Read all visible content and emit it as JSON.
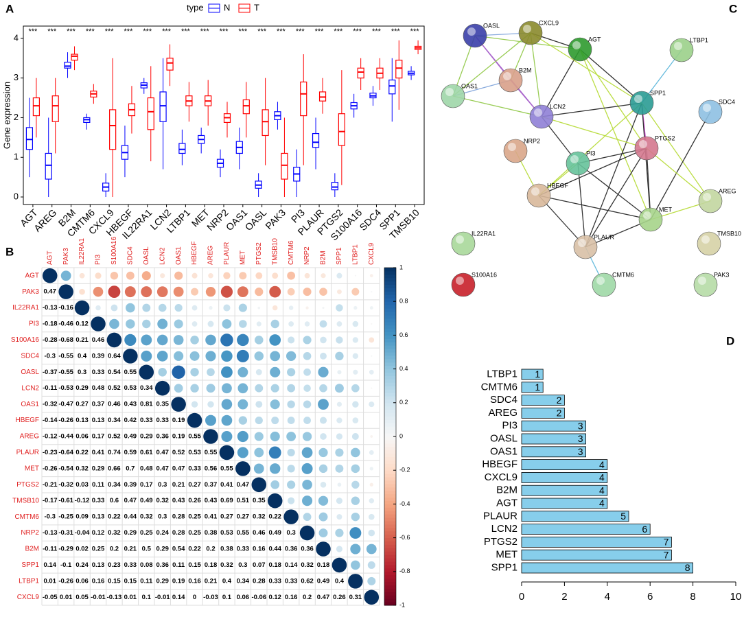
{
  "panel_labels": [
    "A",
    "B",
    "C",
    "D"
  ],
  "chart_data": [
    {
      "type": "box",
      "ylabel": "Gene expression",
      "legend_title": "type",
      "categories": [
        "AGT",
        "AREG",
        "B2M",
        "CMTM6",
        "CXCL9",
        "HBEGF",
        "IL22RA1",
        "LCN2",
        "LTBP1",
        "MET",
        "NRP2",
        "OAS1",
        "OASL",
        "PAK3",
        "PI3",
        "PLAUR",
        "PTGS2",
        "S100A16",
        "SDC4",
        "SPP1",
        "TMSB10"
      ],
      "significance": [
        "***",
        "***",
        "***",
        "***",
        "***",
        "***",
        "***",
        "***",
        "***",
        "***",
        "***",
        "***",
        "***",
        "***",
        "***",
        "***",
        "***",
        "***",
        "***",
        "***",
        "***"
      ],
      "ylim": [
        -0.19,
        4.31
      ],
      "yticks": [
        0,
        1,
        2,
        3,
        4
      ],
      "series": [
        {
          "name": "N",
          "color": "#0000ff",
          "boxes": [
            [
              0.5,
              1.2,
              1.45,
              1.75,
              2.5
            ],
            [
              0,
              0.45,
              0.8,
              1.1,
              2.0
            ],
            [
              3.0,
              3.25,
              3.3,
              3.4,
              3.65
            ],
            [
              1.7,
              1.88,
              1.95,
              2.0,
              2.1
            ],
            [
              0,
              0.15,
              0.25,
              0.35,
              0.6
            ],
            [
              0.5,
              0.95,
              1.12,
              1.3,
              1.8
            ],
            [
              2.6,
              2.75,
              2.82,
              2.88,
              3.0
            ],
            [
              0.7,
              1.9,
              2.3,
              2.65,
              3.5
            ],
            [
              0.8,
              1.1,
              1.2,
              1.35,
              1.7
            ],
            [
              1.1,
              1.35,
              1.45,
              1.55,
              1.75
            ],
            [
              0.5,
              0.75,
              0.85,
              0.95,
              1.2
            ],
            [
              0.7,
              1.1,
              1.25,
              1.4,
              1.75
            ],
            [
              0,
              0.22,
              0.3,
              0.4,
              0.6
            ],
            [
              1.7,
              1.95,
              2.05,
              2.15,
              2.4
            ],
            [
              0,
              0.4,
              0.58,
              0.75,
              1.2
            ],
            [
              0.7,
              1.25,
              1.38,
              1.6,
              2.0
            ],
            [
              0,
              0.18,
              0.25,
              0.37,
              0.6
            ],
            [
              2.0,
              2.22,
              2.3,
              2.38,
              2.6
            ],
            [
              2.3,
              2.5,
              2.55,
              2.62,
              2.8
            ],
            [
              1.9,
              2.6,
              2.8,
              2.95,
              3.5
            ],
            [
              2.95,
              3.08,
              3.12,
              3.17,
              3.3
            ]
          ]
        },
        {
          "name": "T",
          "color": "#ff0000",
          "boxes": [
            [
              1.5,
              2.05,
              2.3,
              2.5,
              3.0
            ],
            [
              1.1,
              1.9,
              2.3,
              2.55,
              3.0
            ],
            [
              3.2,
              3.45,
              3.55,
              3.6,
              3.8
            ],
            [
              2.35,
              2.52,
              2.6,
              2.67,
              2.85
            ],
            [
              0,
              1.2,
              1.8,
              2.2,
              3.5
            ],
            [
              1.6,
              2.05,
              2.2,
              2.35,
              2.8
            ],
            [
              0.9,
              1.7,
              2.15,
              2.5,
              3.3
            ],
            [
              2.8,
              3.2,
              3.38,
              3.5,
              3.85
            ],
            [
              1.9,
              2.3,
              2.42,
              2.55,
              2.9
            ],
            [
              1.8,
              2.3,
              2.42,
              2.55,
              2.95
            ],
            [
              1.5,
              1.88,
              2.0,
              2.1,
              2.4
            ],
            [
              1.5,
              2.1,
              2.3,
              2.45,
              2.9
            ],
            [
              0.8,
              1.55,
              1.9,
              2.2,
              3.0
            ],
            [
              0,
              0.45,
              0.8,
              1.1,
              2.0
            ],
            [
              0.8,
              2.05,
              2.6,
              2.9,
              3.6
            ],
            [
              2.1,
              2.42,
              2.52,
              2.65,
              3.0
            ],
            [
              0.3,
              1.3,
              1.65,
              2.1,
              3.2
            ],
            [
              2.7,
              3.0,
              3.15,
              3.25,
              3.5
            ],
            [
              2.7,
              3.0,
              3.12,
              3.25,
              3.5
            ],
            [
              2.2,
              3.0,
              3.25,
              3.45,
              3.95
            ],
            [
              3.6,
              3.72,
              3.76,
              3.8,
              3.95
            ]
          ]
        }
      ]
    },
    {
      "type": "corrplot",
      "labels": [
        "AGT",
        "PAK3",
        "IL22RA1",
        "PI3",
        "S100A16",
        "SDC4",
        "OASL",
        "LCN2",
        "OAS1",
        "HBEGF",
        "AREG",
        "PLAUR",
        "MET",
        "PTGS2",
        "TMSB10",
        "CMTM6",
        "NRP2",
        "B2M",
        "SPP1",
        "LTBP1",
        "CXCL9"
      ],
      "clim": [
        -1,
        1
      ],
      "colorbar_ticks": [
        -1,
        -0.8,
        -0.6,
        -0.4,
        -0.2,
        0,
        0.2,
        0.4,
        0.6,
        0.8,
        1
      ],
      "lower": [
        [
          1
        ],
        [
          0.47,
          1
        ],
        [
          -0.13,
          -0.16,
          1
        ],
        [
          -0.18,
          -0.46,
          0.12,
          1
        ],
        [
          -0.28,
          -0.68,
          0.21,
          0.46,
          1
        ],
        [
          -0.3,
          -0.55,
          0.4,
          0.39,
          0.64,
          1
        ],
        [
          -0.37,
          -0.55,
          0.3,
          0.33,
          0.54,
          0.55,
          1
        ],
        [
          -0.11,
          -0.53,
          0.29,
          0.48,
          0.52,
          0.53,
          0.34,
          1
        ],
        [
          -0.32,
          -0.47,
          0.27,
          0.37,
          0.46,
          0.43,
          0.81,
          0.35,
          1
        ],
        [
          -0.14,
          -0.26,
          0.13,
          0.13,
          0.34,
          0.42,
          0.33,
          0.33,
          0.19,
          1
        ],
        [
          -0.12,
          -0.44,
          0.06,
          0.17,
          0.52,
          0.49,
          0.29,
          0.36,
          0.19,
          0.55,
          1
        ],
        [
          -0.23,
          -0.64,
          0.22,
          0.41,
          0.74,
          0.59,
          0.61,
          0.47,
          0.52,
          0.53,
          0.55,
          1
        ],
        [
          -0.26,
          -0.54,
          0.32,
          0.29,
          0.66,
          0.7,
          0.48,
          0.47,
          0.47,
          0.33,
          0.56,
          0.55,
          1
        ],
        [
          -0.21,
          -0.32,
          0.03,
          0.11,
          0.34,
          0.39,
          0.17,
          0.3,
          0.21,
          0.27,
          0.37,
          0.41,
          0.47,
          1
        ],
        [
          -0.17,
          -0.61,
          -0.12,
          0.33,
          0.6,
          0.47,
          0.49,
          0.32,
          0.43,
          0.26,
          0.43,
          0.69,
          0.51,
          0.35,
          1
        ],
        [
          -0.3,
          -0.25,
          0.09,
          0.13,
          0.22,
          0.44,
          0.32,
          0.3,
          0.28,
          0.25,
          0.41,
          0.27,
          0.27,
          0.32,
          0.22,
          1
        ],
        [
          -0.13,
          -0.31,
          -0.04,
          0.12,
          0.32,
          0.29,
          0.25,
          0.24,
          0.28,
          0.25,
          0.38,
          0.53,
          0.55,
          0.46,
          0.49,
          0.3,
          1
        ],
        [
          -0.11,
          -0.29,
          0.02,
          0.25,
          0.2,
          0.21,
          0.5,
          0.29,
          0.54,
          0.22,
          0.2,
          0.38,
          0.33,
          0.16,
          0.44,
          0.36,
          0.36,
          1
        ],
        [
          0.14,
          -0.1,
          0.24,
          0.13,
          0.23,
          0.33,
          0.08,
          0.36,
          0.11,
          0.15,
          0.18,
          0.32,
          0.3,
          0.07,
          0.18,
          0.14,
          0.32,
          0.18,
          1
        ],
        [
          0.01,
          -0.26,
          0.06,
          0.16,
          0.15,
          0.15,
          0.11,
          0.29,
          0.19,
          0.16,
          0.21,
          0.4,
          0.34,
          0.28,
          0.33,
          0.33,
          0.62,
          0.49,
          0.4,
          1
        ],
        [
          -0.05,
          0.01,
          0.05,
          -0.01,
          -0.13,
          0.01,
          0.1,
          -0.01,
          0.14,
          0,
          -0.03,
          0.1,
          0.06,
          -0.06,
          0.12,
          0.16,
          0.2,
          0.47,
          0.26,
          0.31,
          1
        ]
      ]
    },
    {
      "type": "bar",
      "orientation": "horizontal",
      "color": "#87ceeb",
      "categories": [
        "LTBP1",
        "CMTM6",
        "SDC4",
        "AREG",
        "PI3",
        "OASL",
        "OAS1",
        "HBEGF",
        "CXCL9",
        "B2M",
        "AGT",
        "PLAUR",
        "LCN2",
        "PTGS2",
        "MET",
        "SPP1"
      ],
      "values": [
        1,
        1,
        2,
        2,
        3,
        3,
        3,
        4,
        4,
        4,
        4,
        5,
        6,
        7,
        7,
        8
      ],
      "xlim": [
        0,
        10
      ],
      "xticks": [
        0,
        2,
        4,
        6,
        8,
        10
      ]
    }
  ],
  "network": {
    "nodes": [
      {
        "label": "OASL",
        "color": "#3a3fa8"
      },
      {
        "label": "CXCL9",
        "color": "#8a8a2c"
      },
      {
        "label": "AGT",
        "color": "#2e9a2e"
      },
      {
        "label": "LTBP1",
        "color": "#9bd08a"
      },
      {
        "label": "B2M",
        "color": "#d8a08a"
      },
      {
        "label": "OAS1",
        "color": "#9fd6a8"
      },
      {
        "label": "SPP1",
        "color": "#2a9b94"
      },
      {
        "label": "SDC4",
        "color": "#8ec0e2"
      },
      {
        "label": "LCN2",
        "color": "#8f7fd6"
      },
      {
        "label": "NRP2",
        "color": "#d9a68a"
      },
      {
        "label": "PI3",
        "color": "#66c29a"
      },
      {
        "label": "PTGS2",
        "color": "#d4788e"
      },
      {
        "label": "HBEGF",
        "color": "#d8b89a"
      },
      {
        "label": "AREG",
        "color": "#c2d6a0"
      },
      {
        "label": "MET",
        "color": "#a6d48a"
      },
      {
        "label": "IL22RA1",
        "color": "#a8d89a"
      },
      {
        "label": "TMSB10",
        "color": "#d6d2a6"
      },
      {
        "label": "PLAUR",
        "color": "#d8c0a6"
      },
      {
        "label": "S100A16",
        "color": "#c8202a"
      },
      {
        "label": "CMTM6",
        "color": "#9fd8a6"
      },
      {
        "label": "PAK3",
        "color": "#b6dca6"
      }
    ]
  }
}
